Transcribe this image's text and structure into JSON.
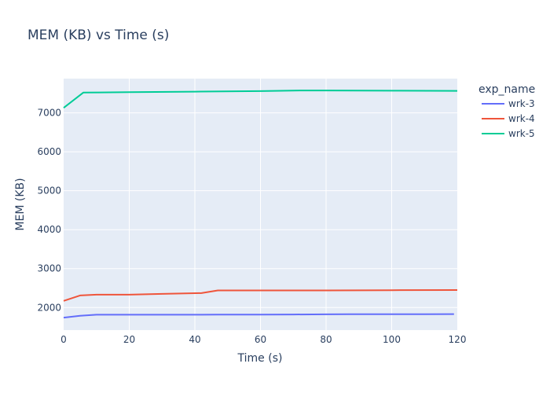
{
  "chart_data": {
    "type": "line",
    "title": "MEM (KB) vs Time (s)",
    "xlabel": "Time (s)",
    "ylabel": "MEM (KB)",
    "xlim": [
      0,
      120
    ],
    "ylim": [
      1420,
      7880
    ],
    "xticks": [
      0,
      20,
      40,
      60,
      80,
      100,
      120
    ],
    "yticks": [
      2000,
      3000,
      4000,
      5000,
      6000,
      7000
    ],
    "xtick_labels": [
      "0",
      "20",
      "40",
      "60",
      "80",
      "100",
      "120"
    ],
    "ytick_labels": [
      "2000",
      "3000",
      "4000",
      "5000",
      "6000",
      "7000"
    ],
    "grid": true,
    "legend_title": "exp_name",
    "legend_position": "right",
    "series": [
      {
        "name": "wrk-3",
        "color": "#636efa",
        "x": [
          0,
          5,
          10,
          20,
          30,
          42,
          47,
          60,
          70,
          80,
          87,
          100,
          110,
          119
        ],
        "y": [
          1740,
          1790,
          1815,
          1815,
          1815,
          1815,
          1820,
          1820,
          1822,
          1825,
          1830,
          1830,
          1830,
          1832
        ]
      },
      {
        "name": "wrk-4",
        "color": "#ef553b",
        "x": [
          0,
          5,
          10,
          20,
          30,
          42,
          47,
          60,
          80,
          100,
          120
        ],
        "y": [
          2170,
          2310,
          2330,
          2330,
          2350,
          2370,
          2440,
          2440,
          2440,
          2445,
          2450
        ]
      },
      {
        "name": "wrk-5",
        "color": "#00cc96",
        "x": [
          0,
          6,
          20,
          40,
          60,
          72,
          80,
          100,
          120
        ],
        "y": [
          7130,
          7520,
          7530,
          7545,
          7560,
          7575,
          7575,
          7570,
          7565
        ]
      }
    ]
  }
}
